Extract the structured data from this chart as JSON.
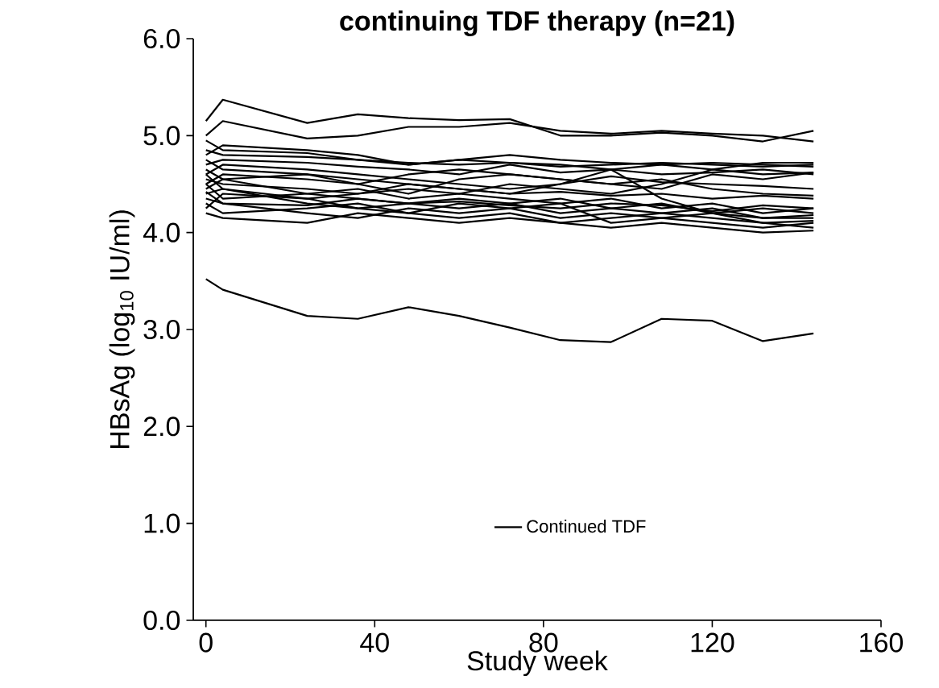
{
  "chart_data": {
    "type": "line",
    "title": "continuing TDF therapy (n=21)",
    "xlabel": "Study week",
    "ylabel": "HBsAg (log$_{10}$ IU/ml)",
    "x": [
      0,
      4,
      24,
      36,
      48,
      60,
      72,
      84,
      96,
      108,
      120,
      132,
      144
    ],
    "xlim": [
      -3,
      160
    ],
    "xticks": [
      0,
      40,
      80,
      120,
      160
    ],
    "ylim": [
      0,
      6
    ],
    "yticks": [
      {
        "value": 0,
        "label": "0.0"
      },
      {
        "value": 1,
        "label": "1.0"
      },
      {
        "value": 2,
        "label": "2.0"
      },
      {
        "value": 3,
        "label": "3.0"
      },
      {
        "value": 4,
        "label": "4.0"
      },
      {
        "value": 5,
        "label": "5.0"
      },
      {
        "value": 6,
        "label": "6.0"
      }
    ],
    "legend": "bottom",
    "marker": "none",
    "line_style": "solid",
    "grid": false,
    "series": [
      {
        "color": "#000000",
        "values": [
          5.15,
          5.37,
          5.13,
          5.22,
          5.18,
          5.16,
          5.17,
          5.0,
          5.0,
          5.03,
          5.0,
          4.94,
          5.05
        ]
      },
      {
        "color": "#000000",
        "values": [
          5.0,
          5.15,
          4.97,
          5.0,
          5.09,
          5.09,
          5.13,
          5.05,
          5.02,
          5.05,
          5.02,
          5.0,
          4.94
        ]
      },
      {
        "color": "#000000",
        "values": [
          4.85,
          4.8,
          4.78,
          4.75,
          4.72,
          4.7,
          4.72,
          4.68,
          4.7,
          4.72,
          4.7,
          4.68,
          4.7
        ]
      },
      {
        "color": "#000000",
        "values": [
          4.8,
          4.9,
          4.85,
          4.8,
          4.7,
          4.75,
          4.8,
          4.75,
          4.72,
          4.7,
          4.65,
          4.72,
          4.72
        ]
      },
      {
        "color": "#000000",
        "values": [
          4.7,
          4.75,
          4.72,
          4.68,
          4.65,
          4.6,
          4.7,
          4.62,
          4.65,
          4.6,
          4.62,
          4.65,
          4.6
        ]
      },
      {
        "color": "#000000",
        "values": [
          4.65,
          4.55,
          4.6,
          4.5,
          4.4,
          4.55,
          4.6,
          4.55,
          4.5,
          4.45,
          4.6,
          4.55,
          4.62
        ]
      },
      {
        "color": "#000000",
        "values": [
          4.6,
          4.7,
          4.65,
          4.6,
          4.55,
          4.5,
          4.45,
          4.5,
          4.58,
          4.52,
          4.5,
          4.48,
          4.45
        ]
      },
      {
        "color": "#000000",
        "values": [
          4.55,
          4.5,
          4.45,
          4.4,
          4.5,
          4.45,
          4.4,
          4.42,
          4.38,
          4.4,
          4.35,
          4.38,
          4.35
        ]
      },
      {
        "color": "#000000",
        "values": [
          4.5,
          4.35,
          4.4,
          4.45,
          4.35,
          4.4,
          4.35,
          4.3,
          4.35,
          4.25,
          4.3,
          4.2,
          4.25
        ]
      },
      {
        "color": "#000000",
        "values": [
          4.45,
          4.55,
          4.4,
          4.35,
          4.3,
          4.35,
          4.3,
          4.35,
          4.25,
          4.3,
          4.2,
          4.25,
          4.2
        ]
      },
      {
        "color": "#000000",
        "values": [
          4.4,
          4.45,
          4.3,
          4.25,
          4.3,
          4.25,
          4.3,
          4.2,
          4.25,
          4.2,
          4.25,
          4.15,
          4.18
        ]
      },
      {
        "color": "#000000",
        "values": [
          4.35,
          4.3,
          4.2,
          4.15,
          4.25,
          4.2,
          4.25,
          4.15,
          4.2,
          4.15,
          4.1,
          4.05,
          4.1
        ]
      },
      {
        "color": "#000000",
        "values": [
          4.3,
          4.2,
          4.25,
          4.3,
          4.2,
          4.15,
          4.2,
          4.1,
          4.15,
          4.2,
          4.15,
          4.1,
          4.05
        ]
      },
      {
        "color": "#000000",
        "values": [
          4.25,
          4.4,
          4.35,
          4.25,
          4.2,
          4.3,
          4.25,
          4.3,
          4.1,
          4.15,
          4.2,
          4.1,
          4.12
        ]
      },
      {
        "color": "#000000",
        "values": [
          4.2,
          4.15,
          4.1,
          4.2,
          4.15,
          4.1,
          4.15,
          4.1,
          4.05,
          4.1,
          4.05,
          4.0,
          4.02
        ]
      },
      {
        "color": "#000000",
        "values": [
          4.75,
          4.65,
          4.6,
          4.55,
          4.5,
          4.45,
          4.4,
          4.5,
          4.65,
          4.35,
          4.2,
          4.15,
          4.15
        ]
      },
      {
        "color": "#000000",
        "values": [
          4.6,
          4.45,
          4.35,
          4.4,
          4.45,
          4.4,
          4.5,
          4.45,
          4.4,
          4.5,
          4.65,
          4.6,
          4.62
        ]
      },
      {
        "color": "#000000",
        "values": [
          4.5,
          4.6,
          4.55,
          4.5,
          4.6,
          4.65,
          4.6,
          4.55,
          4.5,
          4.55,
          4.45,
          4.4,
          4.38
        ]
      },
      {
        "color": "#000000",
        "values": [
          4.95,
          4.85,
          4.82,
          4.75,
          4.7,
          4.75,
          4.72,
          4.7,
          4.65,
          4.7,
          4.72,
          4.7,
          4.68
        ]
      },
      {
        "color": "#000000",
        "values": [
          4.42,
          4.3,
          4.28,
          4.35,
          4.3,
          4.32,
          4.28,
          4.25,
          4.3,
          4.28,
          4.22,
          4.28,
          4.25
        ]
      },
      {
        "name": "Continued TDF",
        "color": "#000000",
        "values": [
          3.52,
          3.41,
          3.14,
          3.11,
          3.23,
          3.14,
          3.02,
          2.89,
          2.87,
          3.11,
          3.09,
          2.88,
          2.96
        ]
      }
    ]
  }
}
